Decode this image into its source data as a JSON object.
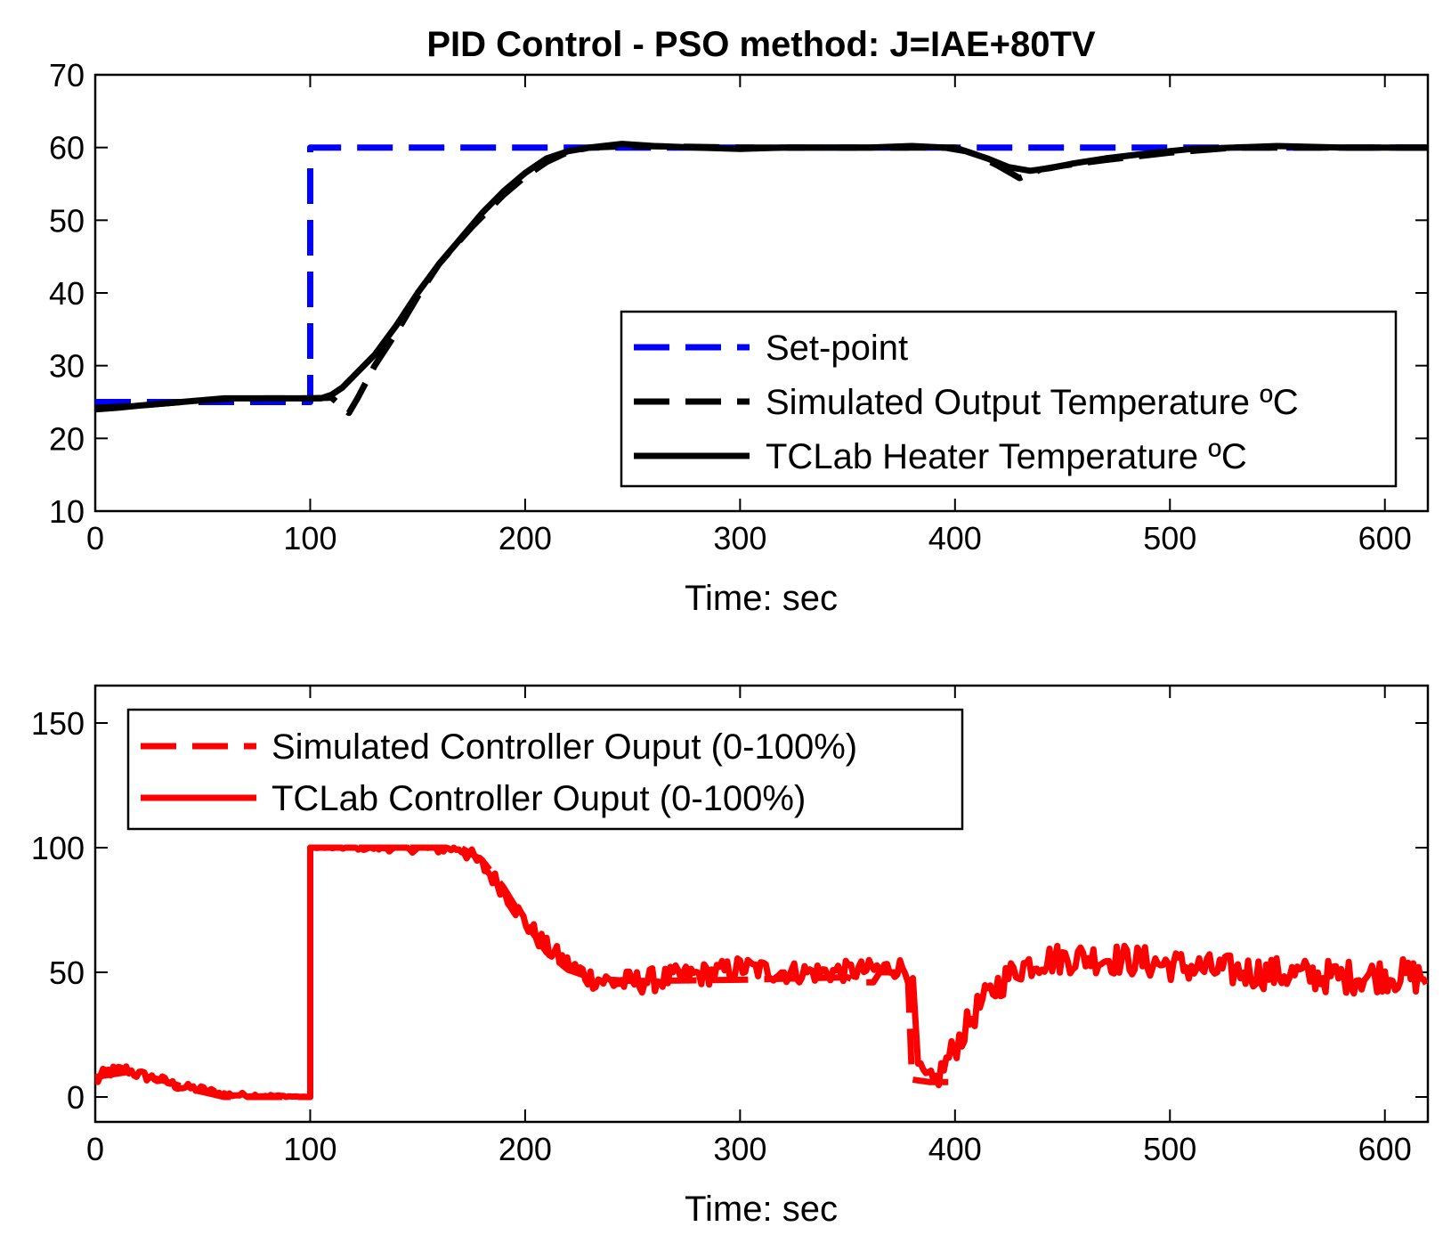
{
  "chart_data": [
    {
      "type": "line",
      "title": "PID Control - PSO method: J=IAE+80TV",
      "xlabel": "Time: sec",
      "ylabel": "",
      "xlim": [
        0,
        620
      ],
      "ylim": [
        10,
        70
      ],
      "xticks": [
        0,
        100,
        200,
        300,
        400,
        500,
        600
      ],
      "yticks": [
        10,
        20,
        30,
        40,
        50,
        60,
        70
      ],
      "legend_position": "center-right",
      "colors": {
        "setpoint": "#0000ff",
        "simulated": "#000000",
        "tclab": "#000000"
      },
      "series": [
        {
          "name": "Set-point",
          "style": "dashed",
          "color": "#0000ff",
          "points": [
            [
              0,
              25
            ],
            [
              100,
              25
            ],
            [
              100,
              60
            ],
            [
              620,
              60
            ]
          ]
        },
        {
          "name": "Simulated Output Temperature ºC",
          "style": "dashed",
          "color": "#000000",
          "points": [
            [
              0,
              24.2
            ],
            [
              20,
              24.5
            ],
            [
              40,
              25
            ],
            [
              60,
              25.4
            ],
            [
              80,
              25.5
            ],
            [
              100,
              25.5
            ],
            [
              110,
              25.6
            ],
            [
              118,
              23.5
            ],
            [
              122,
              25.5
            ],
            [
              130,
              30
            ],
            [
              140,
              34.5
            ],
            [
              150,
              39.5
            ],
            [
              160,
              44
            ],
            [
              175,
              49
            ],
            [
              190,
              53.5
            ],
            [
              200,
              56
            ],
            [
              210,
              58
            ],
            [
              220,
              59.4
            ],
            [
              230,
              60
            ],
            [
              250,
              60.2
            ],
            [
              300,
              60
            ],
            [
              350,
              60
            ],
            [
              400,
              60
            ],
            [
              410,
              59
            ],
            [
              420,
              57.5
            ],
            [
              430,
              55.8
            ],
            [
              440,
              57
            ],
            [
              450,
              57.5
            ],
            [
              470,
              58.3
            ],
            [
              500,
              59.3
            ],
            [
              530,
              60
            ],
            [
              620,
              60
            ]
          ]
        },
        {
          "name": "TCLab Heater Temperature ºC",
          "style": "solid",
          "color": "#000000",
          "points": [
            [
              0,
              24
            ],
            [
              10,
              24.2
            ],
            [
              20,
              24.5
            ],
            [
              40,
              25
            ],
            [
              60,
              25.5
            ],
            [
              80,
              25.5
            ],
            [
              100,
              25.5
            ],
            [
              105,
              25.5
            ],
            [
              110,
              26
            ],
            [
              115,
              27
            ],
            [
              120,
              28.5
            ],
            [
              130,
              31.5
            ],
            [
              140,
              35.5
            ],
            [
              150,
              40
            ],
            [
              160,
              44
            ],
            [
              170,
              47.5
            ],
            [
              180,
              51
            ],
            [
              190,
              54
            ],
            [
              200,
              56.5
            ],
            [
              210,
              58.5
            ],
            [
              220,
              59.5
            ],
            [
              230,
              60
            ],
            [
              245,
              60.5
            ],
            [
              260,
              60.2
            ],
            [
              280,
              60
            ],
            [
              300,
              59.8
            ],
            [
              320,
              60
            ],
            [
              340,
              60
            ],
            [
              360,
              60
            ],
            [
              380,
              60.2
            ],
            [
              395,
              60
            ],
            [
              405,
              59.5
            ],
            [
              415,
              58.5
            ],
            [
              425,
              57.3
            ],
            [
              435,
              56.8
            ],
            [
              445,
              57.2
            ],
            [
              455,
              57.8
            ],
            [
              470,
              58.5
            ],
            [
              490,
              59.2
            ],
            [
              510,
              59.8
            ],
            [
              530,
              60
            ],
            [
              550,
              60.2
            ],
            [
              580,
              60
            ],
            [
              620,
              60
            ]
          ]
        }
      ]
    },
    {
      "type": "line",
      "title": "",
      "xlabel": "Time: sec",
      "ylabel": "",
      "xlim": [
        0,
        620
      ],
      "ylim": [
        -10,
        165
      ],
      "xticks": [
        0,
        100,
        200,
        300,
        400,
        500,
        600
      ],
      "yticks": [
        0,
        50,
        100,
        150
      ],
      "legend_position": "top-left",
      "colors": {
        "simulated": "#ff0000",
        "tclab": "#ff0000"
      },
      "series": [
        {
          "name": "Simulated Controller Ouput (0-100%)",
          "style": "dashed",
          "color": "#ff0000",
          "points": [
            [
              0,
              8
            ],
            [
              15,
              10
            ],
            [
              30,
              7
            ],
            [
              45,
              3
            ],
            [
              60,
              0
            ],
            [
              100,
              0
            ],
            [
              100,
              100
            ],
            [
              170,
              100
            ],
            [
              180,
              95
            ],
            [
              190,
              84
            ],
            [
              200,
              70
            ],
            [
              210,
              58
            ],
            [
              220,
              51
            ],
            [
              230,
              48
            ],
            [
              240,
              47
            ],
            [
              250,
              46.5
            ],
            [
              300,
              47
            ],
            [
              350,
              48
            ],
            [
              355,
              46
            ],
            [
              362,
              46
            ],
            [
              365,
              50
            ],
            [
              378,
              50
            ],
            [
              380,
              7
            ],
            [
              388,
              6
            ],
            [
              400,
              6
            ]
          ]
        },
        {
          "name": "TCLab Controller Ouput (0-100%)",
          "style": "solid",
          "color": "#ff0000",
          "noise": [
            [
              0,
              2.5
            ],
            [
              50,
              1.5
            ],
            [
              100,
              0
            ],
            [
              170,
              3
            ],
            [
              250,
              5
            ],
            [
              380,
              4
            ],
            [
              400,
              6
            ],
            [
              620,
              7
            ]
          ],
          "points": [
            [
              0,
              6
            ],
            [
              5,
              10
            ],
            [
              15,
              11
            ],
            [
              20,
              9
            ],
            [
              30,
              7
            ],
            [
              40,
              4
            ],
            [
              50,
              3
            ],
            [
              60,
              1
            ],
            [
              100,
              0
            ],
            [
              100,
              100
            ],
            [
              170,
              100
            ],
            [
              180,
              93
            ],
            [
              190,
              83
            ],
            [
              200,
              70
            ],
            [
              210,
              60
            ],
            [
              220,
              53
            ],
            [
              230,
              48
            ],
            [
              240,
              46
            ],
            [
              250,
              46
            ],
            [
              270,
              48
            ],
            [
              290,
              50
            ],
            [
              300,
              52
            ],
            [
              320,
              50
            ],
            [
              340,
              50
            ],
            [
              360,
              51
            ],
            [
              375,
              52
            ],
            [
              380,
              49
            ],
            [
              383,
              10
            ],
            [
              390,
              5
            ],
            [
              400,
              20
            ],
            [
              410,
              35
            ],
            [
              420,
              45
            ],
            [
              430,
              52
            ],
            [
              440,
              55
            ],
            [
              460,
              56
            ],
            [
              480,
              55
            ],
            [
              500,
              53
            ],
            [
              520,
              51
            ],
            [
              540,
              50
            ],
            [
              560,
              49
            ],
            [
              580,
              48
            ],
            [
              600,
              49
            ],
            [
              620,
              48
            ]
          ]
        }
      ]
    }
  ]
}
